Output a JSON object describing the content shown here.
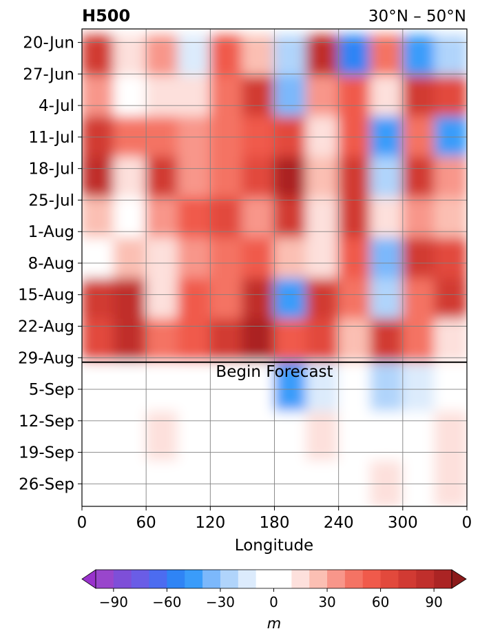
{
  "chart_data": {
    "type": "heatmap",
    "title_left": "H500",
    "title_right": "30°N – 50°N",
    "xlabel": "Longitude",
    "x_ticks": [
      "0",
      "60",
      "120",
      "180",
      "240",
      "300",
      "0"
    ],
    "x_tick_values": [
      0,
      60,
      120,
      180,
      240,
      300,
      360
    ],
    "xlim": [
      0,
      360
    ],
    "y_ticks": [
      "20-Jun",
      "27-Jun",
      "4-Jul",
      "11-Jul",
      "18-Jul",
      "25-Jul",
      "1-Aug",
      "8-Aug",
      "15-Aug",
      "22-Aug",
      "29-Aug",
      "5-Sep",
      "12-Sep",
      "19-Sep",
      "26-Sep"
    ],
    "y_range_dates": [
      "2024-06-17",
      "2024-10-01"
    ],
    "y_direction": "time increases downward",
    "forecast_start": "2024-08-30",
    "annotation": "Begin Forecast",
    "grid": true,
    "colorbar": {
      "label": "m",
      "ticks": [
        "−90",
        "−60",
        "−30",
        "0",
        "30",
        "60",
        "90"
      ],
      "tick_values": [
        -90,
        -60,
        -30,
        0,
        30,
        60,
        90
      ],
      "levels": [
        -100,
        -90,
        -80,
        -70,
        -60,
        -50,
        -40,
        -30,
        -20,
        -10,
        10,
        20,
        30,
        40,
        50,
        60,
        70,
        80,
        90,
        100
      ],
      "colors": [
        "#9946cc",
        "#7e4fd8",
        "#6a5de6",
        "#4c6cf0",
        "#2f84f5",
        "#3a9cfa",
        "#7cb8fb",
        "#b0d4fb",
        "#dcebfc",
        "#ffffff",
        "#fde0dc",
        "#fbbfb3",
        "#f8968a",
        "#f47364",
        "#f05a4b",
        "#e2493c",
        "#d13a33",
        "#c02f2c",
        "#ab2424"
      ],
      "extend_low_color": "#9932cc",
      "extend_high_color": "#8b1a1a",
      "extend": "both"
    },
    "cells": [
      {
        "lon": 15,
        "date": "2024-06-23",
        "value": 70
      },
      {
        "lon": 45,
        "date": "2024-06-23",
        "value": 10
      },
      {
        "lon": 75,
        "date": "2024-06-23",
        "value": 30
      },
      {
        "lon": 105,
        "date": "2024-06-23",
        "value": -20
      },
      {
        "lon": 135,
        "date": "2024-06-23",
        "value": 50
      },
      {
        "lon": 165,
        "date": "2024-06-23",
        "value": 20
      },
      {
        "lon": 195,
        "date": "2024-06-23",
        "value": -30
      },
      {
        "lon": 225,
        "date": "2024-06-23",
        "value": 80
      },
      {
        "lon": 255,
        "date": "2024-06-23",
        "value": -60
      },
      {
        "lon": 285,
        "date": "2024-06-23",
        "value": 40
      },
      {
        "lon": 315,
        "date": "2024-06-23",
        "value": -50
      },
      {
        "lon": 345,
        "date": "2024-06-23",
        "value": -30
      },
      {
        "lon": 15,
        "date": "2024-07-02",
        "value": 30
      },
      {
        "lon": 45,
        "date": "2024-07-02",
        "value": 0
      },
      {
        "lon": 75,
        "date": "2024-07-02",
        "value": 10
      },
      {
        "lon": 105,
        "date": "2024-07-02",
        "value": 10
      },
      {
        "lon": 135,
        "date": "2024-07-02",
        "value": 40
      },
      {
        "lon": 165,
        "date": "2024-07-02",
        "value": 70
      },
      {
        "lon": 195,
        "date": "2024-07-02",
        "value": -40
      },
      {
        "lon": 225,
        "date": "2024-07-02",
        "value": 30
      },
      {
        "lon": 255,
        "date": "2024-07-02",
        "value": 50
      },
      {
        "lon": 285,
        "date": "2024-07-02",
        "value": 10
      },
      {
        "lon": 315,
        "date": "2024-07-02",
        "value": 70
      },
      {
        "lon": 345,
        "date": "2024-07-02",
        "value": 60
      },
      {
        "lon": 15,
        "date": "2024-07-11",
        "value": 70
      },
      {
        "lon": 45,
        "date": "2024-07-11",
        "value": 40
      },
      {
        "lon": 75,
        "date": "2024-07-11",
        "value": 40
      },
      {
        "lon": 105,
        "date": "2024-07-11",
        "value": 30
      },
      {
        "lon": 135,
        "date": "2024-07-11",
        "value": 40
      },
      {
        "lon": 165,
        "date": "2024-07-11",
        "value": 50
      },
      {
        "lon": 195,
        "date": "2024-07-11",
        "value": 60
      },
      {
        "lon": 225,
        "date": "2024-07-11",
        "value": 10
      },
      {
        "lon": 255,
        "date": "2024-07-11",
        "value": 50
      },
      {
        "lon": 285,
        "date": "2024-07-11",
        "value": -50
      },
      {
        "lon": 315,
        "date": "2024-07-11",
        "value": 40
      },
      {
        "lon": 345,
        "date": "2024-07-11",
        "value": -50
      },
      {
        "lon": 15,
        "date": "2024-07-20",
        "value": 80
      },
      {
        "lon": 45,
        "date": "2024-07-20",
        "value": 10
      },
      {
        "lon": 75,
        "date": "2024-07-20",
        "value": 70
      },
      {
        "lon": 105,
        "date": "2024-07-20",
        "value": 30
      },
      {
        "lon": 135,
        "date": "2024-07-20",
        "value": 40
      },
      {
        "lon": 165,
        "date": "2024-07-20",
        "value": 60
      },
      {
        "lon": 195,
        "date": "2024-07-20",
        "value": 90
      },
      {
        "lon": 225,
        "date": "2024-07-20",
        "value": 20
      },
      {
        "lon": 255,
        "date": "2024-07-20",
        "value": 70
      },
      {
        "lon": 285,
        "date": "2024-07-20",
        "value": -30
      },
      {
        "lon": 315,
        "date": "2024-07-20",
        "value": 70
      },
      {
        "lon": 345,
        "date": "2024-07-20",
        "value": 30
      },
      {
        "lon": 15,
        "date": "2024-07-29",
        "value": 20
      },
      {
        "lon": 45,
        "date": "2024-07-29",
        "value": 0
      },
      {
        "lon": 75,
        "date": "2024-07-29",
        "value": 30
      },
      {
        "lon": 105,
        "date": "2024-07-29",
        "value": 50
      },
      {
        "lon": 135,
        "date": "2024-07-29",
        "value": 60
      },
      {
        "lon": 165,
        "date": "2024-07-29",
        "value": 30
      },
      {
        "lon": 195,
        "date": "2024-07-29",
        "value": 70
      },
      {
        "lon": 225,
        "date": "2024-07-29",
        "value": 10
      },
      {
        "lon": 255,
        "date": "2024-07-29",
        "value": 70
      },
      {
        "lon": 285,
        "date": "2024-07-29",
        "value": 10
      },
      {
        "lon": 315,
        "date": "2024-07-29",
        "value": 30
      },
      {
        "lon": 345,
        "date": "2024-07-29",
        "value": 20
      },
      {
        "lon": 15,
        "date": "2024-08-07",
        "value": -10
      },
      {
        "lon": 45,
        "date": "2024-08-07",
        "value": 20
      },
      {
        "lon": 75,
        "date": "2024-08-07",
        "value": 10
      },
      {
        "lon": 105,
        "date": "2024-08-07",
        "value": 30
      },
      {
        "lon": 135,
        "date": "2024-08-07",
        "value": 40
      },
      {
        "lon": 165,
        "date": "2024-08-07",
        "value": 50
      },
      {
        "lon": 195,
        "date": "2024-08-07",
        "value": 20
      },
      {
        "lon": 225,
        "date": "2024-08-07",
        "value": 10
      },
      {
        "lon": 255,
        "date": "2024-08-07",
        "value": 50
      },
      {
        "lon": 285,
        "date": "2024-08-07",
        "value": -40
      },
      {
        "lon": 315,
        "date": "2024-08-07",
        "value": 70
      },
      {
        "lon": 345,
        "date": "2024-08-07",
        "value": 60
      },
      {
        "lon": 15,
        "date": "2024-08-16",
        "value": 70
      },
      {
        "lon": 45,
        "date": "2024-08-16",
        "value": 80
      },
      {
        "lon": 75,
        "date": "2024-08-16",
        "value": 10
      },
      {
        "lon": 105,
        "date": "2024-08-16",
        "value": 50
      },
      {
        "lon": 135,
        "date": "2024-08-16",
        "value": 40
      },
      {
        "lon": 165,
        "date": "2024-08-16",
        "value": 80
      },
      {
        "lon": 195,
        "date": "2024-08-16",
        "value": -50
      },
      {
        "lon": 225,
        "date": "2024-08-16",
        "value": 70
      },
      {
        "lon": 255,
        "date": "2024-08-16",
        "value": 40
      },
      {
        "lon": 285,
        "date": "2024-08-16",
        "value": -30
      },
      {
        "lon": 315,
        "date": "2024-08-16",
        "value": 40
      },
      {
        "lon": 345,
        "date": "2024-08-16",
        "value": 70
      },
      {
        "lon": 15,
        "date": "2024-08-25",
        "value": 60
      },
      {
        "lon": 45,
        "date": "2024-08-25",
        "value": 80
      },
      {
        "lon": 75,
        "date": "2024-08-25",
        "value": 40
      },
      {
        "lon": 105,
        "date": "2024-08-25",
        "value": 50
      },
      {
        "lon": 135,
        "date": "2024-08-25",
        "value": 70
      },
      {
        "lon": 165,
        "date": "2024-08-25",
        "value": 90
      },
      {
        "lon": 195,
        "date": "2024-08-25",
        "value": 50
      },
      {
        "lon": 225,
        "date": "2024-08-25",
        "value": 60
      },
      {
        "lon": 255,
        "date": "2024-08-25",
        "value": 20
      },
      {
        "lon": 285,
        "date": "2024-08-25",
        "value": 70
      },
      {
        "lon": 315,
        "date": "2024-08-25",
        "value": 40
      },
      {
        "lon": 345,
        "date": "2024-08-25",
        "value": 10
      },
      {
        "lon": 15,
        "date": "2024-09-04",
        "value": -10
      },
      {
        "lon": 45,
        "date": "2024-09-04",
        "value": 0
      },
      {
        "lon": 75,
        "date": "2024-09-04",
        "value": 0
      },
      {
        "lon": 105,
        "date": "2024-09-04",
        "value": 0
      },
      {
        "lon": 135,
        "date": "2024-09-04",
        "value": 0
      },
      {
        "lon": 165,
        "date": "2024-09-04",
        "value": 0
      },
      {
        "lon": 195,
        "date": "2024-09-04",
        "value": -50
      },
      {
        "lon": 225,
        "date": "2024-09-04",
        "value": -20
      },
      {
        "lon": 255,
        "date": "2024-09-04",
        "value": 0
      },
      {
        "lon": 285,
        "date": "2024-09-04",
        "value": -30
      },
      {
        "lon": 315,
        "date": "2024-09-04",
        "value": -20
      },
      {
        "lon": 345,
        "date": "2024-09-04",
        "value": 0
      },
      {
        "lon": 15,
        "date": "2024-09-16",
        "value": -10
      },
      {
        "lon": 45,
        "date": "2024-09-16",
        "value": 0
      },
      {
        "lon": 75,
        "date": "2024-09-16",
        "value": 10
      },
      {
        "lon": 105,
        "date": "2024-09-16",
        "value": 0
      },
      {
        "lon": 135,
        "date": "2024-09-16",
        "value": 0
      },
      {
        "lon": 165,
        "date": "2024-09-16",
        "value": 0
      },
      {
        "lon": 195,
        "date": "2024-09-16",
        "value": -10
      },
      {
        "lon": 225,
        "date": "2024-09-16",
        "value": 10
      },
      {
        "lon": 255,
        "date": "2024-09-16",
        "value": 0
      },
      {
        "lon": 285,
        "date": "2024-09-16",
        "value": 0
      },
      {
        "lon": 315,
        "date": "2024-09-16",
        "value": 0
      },
      {
        "lon": 345,
        "date": "2024-09-16",
        "value": 10
      },
      {
        "lon": 15,
        "date": "2024-09-26",
        "value": 0
      },
      {
        "lon": 45,
        "date": "2024-09-26",
        "value": 0
      },
      {
        "lon": 75,
        "date": "2024-09-26",
        "value": 0
      },
      {
        "lon": 105,
        "date": "2024-09-26",
        "value": 0
      },
      {
        "lon": 135,
        "date": "2024-09-26",
        "value": 0
      },
      {
        "lon": 165,
        "date": "2024-09-26",
        "value": 0
      },
      {
        "lon": 195,
        "date": "2024-09-26",
        "value": -10
      },
      {
        "lon": 225,
        "date": "2024-09-26",
        "value": 0
      },
      {
        "lon": 255,
        "date": "2024-09-26",
        "value": 0
      },
      {
        "lon": 285,
        "date": "2024-09-26",
        "value": 10
      },
      {
        "lon": 315,
        "date": "2024-09-26",
        "value": 0
      },
      {
        "lon": 345,
        "date": "2024-09-26",
        "value": 10
      }
    ]
  }
}
